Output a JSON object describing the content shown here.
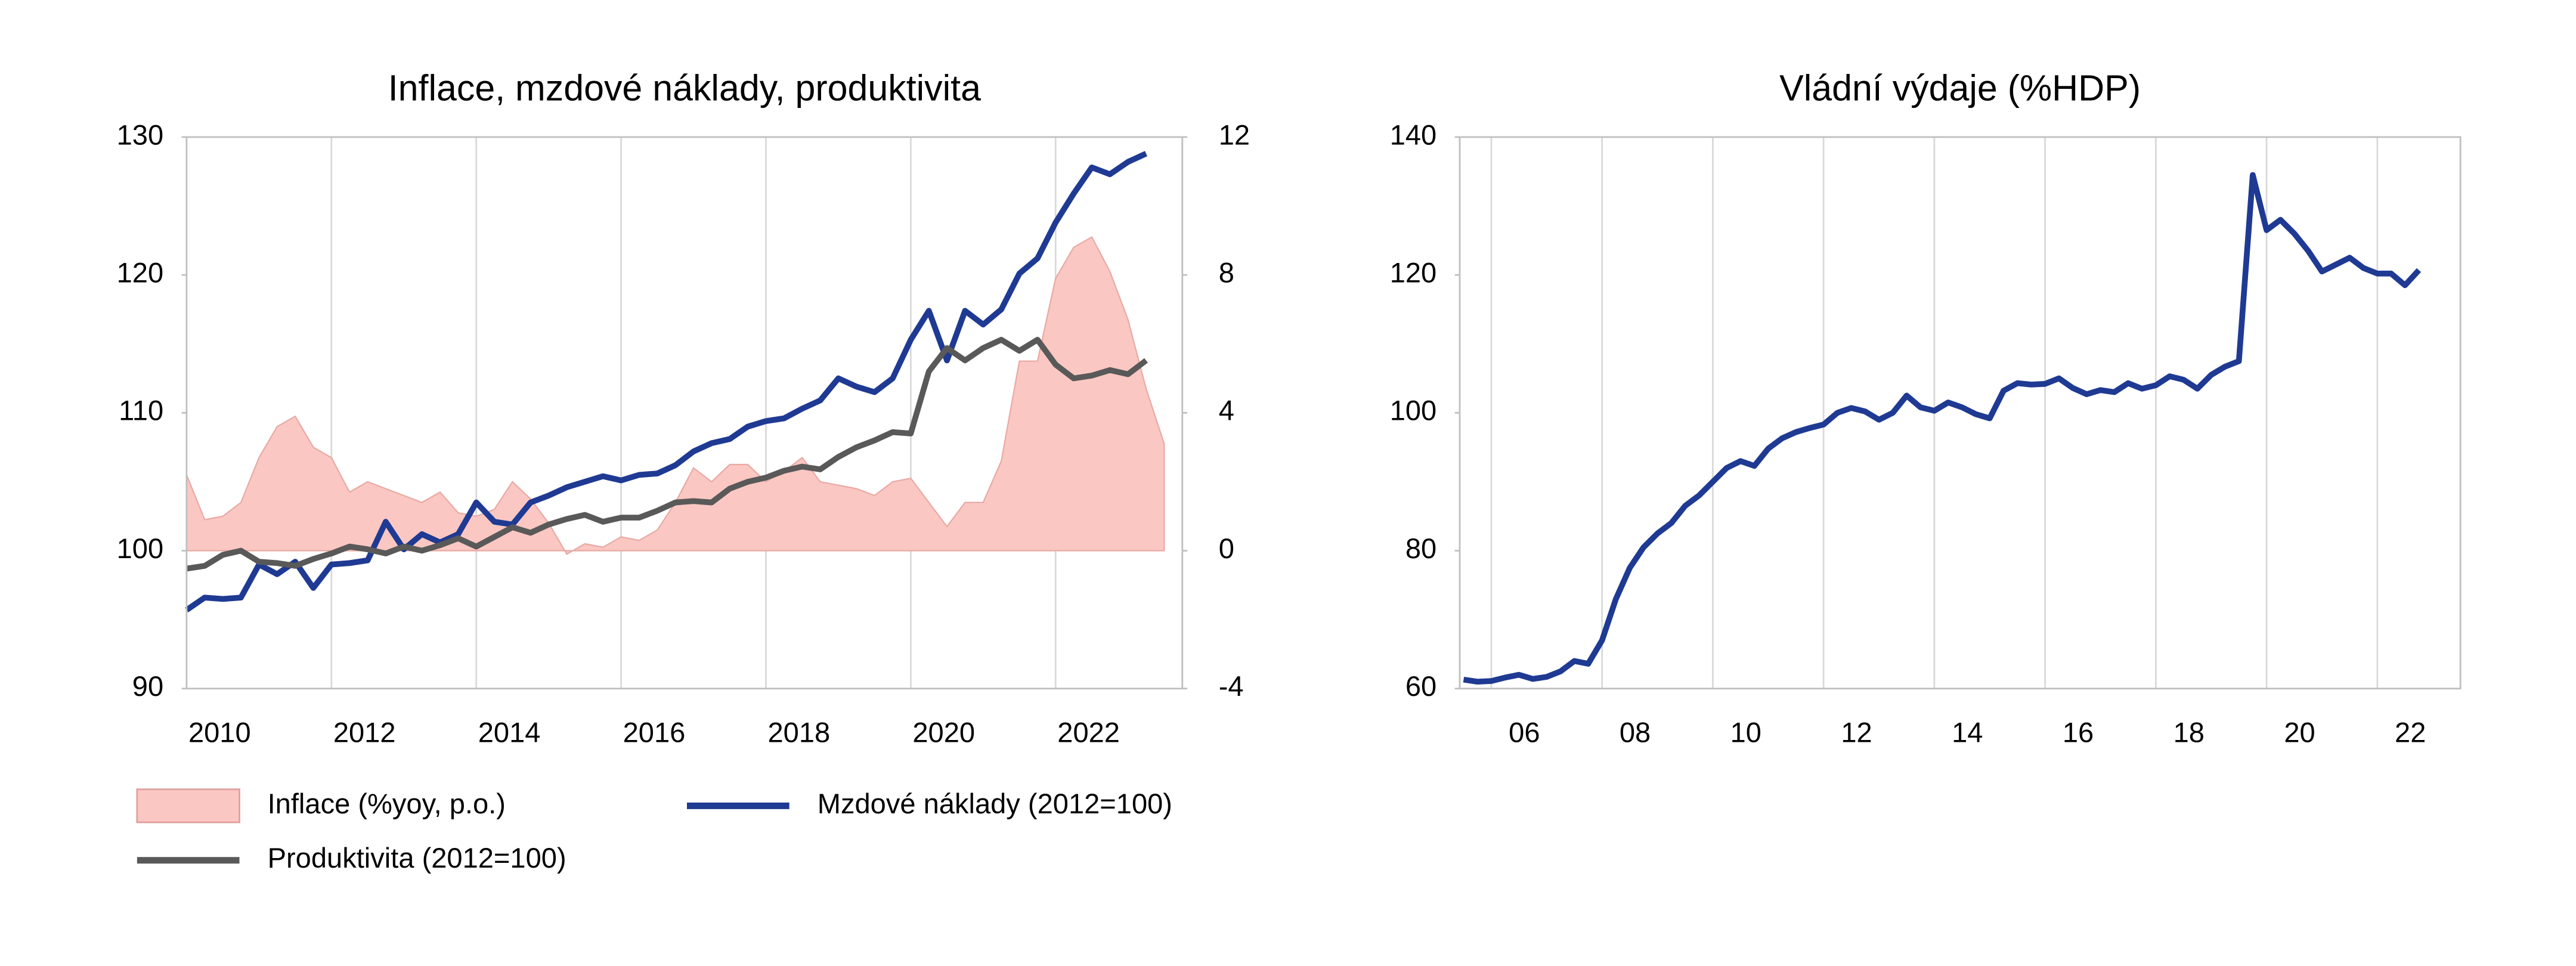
{
  "chart_data": [
    {
      "type": "line",
      "title": "Inflace, mzdové náklady, produktivita",
      "legend": "bottom",
      "grid": "x",
      "x": [
        2010,
        2010.25,
        2010.5,
        2010.75,
        2011,
        2011.25,
        2011.5,
        2011.75,
        2012,
        2012.25,
        2012.5,
        2012.75,
        2013,
        2013.25,
        2013.5,
        2013.75,
        2014,
        2014.25,
        2014.5,
        2014.75,
        2015,
        2015.25,
        2015.5,
        2015.75,
        2016,
        2016.25,
        2016.5,
        2016.75,
        2017,
        2017.25,
        2017.5,
        2017.75,
        2018,
        2018.25,
        2018.5,
        2018.75,
        2019,
        2019.25,
        2019.5,
        2019.75,
        2020,
        2020.25,
        2020.5,
        2020.75,
        2021,
        2021.25,
        2021.5,
        2021.75,
        2022,
        2022.25,
        2022.5,
        2022.75,
        2023,
        2023.25,
        2023.5
      ],
      "xlim": [
        2010,
        2023.75
      ],
      "xticks": [
        2010,
        2012,
        2014,
        2016,
        2018,
        2020,
        2022
      ],
      "ylim": [
        90,
        130
      ],
      "yticks": [
        90,
        100,
        110,
        120,
        130
      ],
      "y2lim": [
        -4,
        12
      ],
      "y2ticks": [
        -4,
        0,
        4,
        8,
        12
      ],
      "series": [
        {
          "name": "Inflace (%yoy, p.o.)",
          "type": "area",
          "axis": "y2",
          "color": "#fbc7c2",
          "values": [
            2.2,
            0.9,
            1.0,
            1.4,
            2.7,
            3.6,
            3.9,
            3.0,
            2.7,
            1.7,
            2.0,
            1.8,
            1.6,
            1.4,
            1.7,
            1.1,
            1.0,
            1.2,
            2.0,
            1.5,
            0.8,
            -0.1,
            0.2,
            0.1,
            0.4,
            0.3,
            0.6,
            1.4,
            2.4,
            2.0,
            2.5,
            2.5,
            2.0,
            2.3,
            2.7,
            2.0,
            1.9,
            1.8,
            1.6,
            2.0,
            2.1,
            1.4,
            0.7,
            1.4,
            1.4,
            2.6,
            5.5,
            5.5,
            7.9,
            8.8,
            9.1,
            8.1,
            6.7,
            4.7,
            3.1
          ]
        },
        {
          "name": "Mzdové náklady (2012=100)",
          "type": "line",
          "axis": "y",
          "color": "#1f3a93",
          "values": [
            95.7,
            96.6,
            96.5,
            96.6,
            99.0,
            98.3,
            99.2,
            97.3,
            99.0,
            99.1,
            99.3,
            102.1,
            100.1,
            101.2,
            100.6,
            101.2,
            103.5,
            102.1,
            101.9,
            103.5,
            104.0,
            104.6,
            105.0,
            105.4,
            105.1,
            105.5,
            105.6,
            106.2,
            107.2,
            107.8,
            108.1,
            109.0,
            109.4,
            109.6,
            110.3,
            110.9,
            112.5,
            111.9,
            111.5,
            112.5,
            115.3,
            117.4,
            113.8,
            117.4,
            116.4,
            117.5,
            120.1,
            121.2,
            123.8,
            125.9,
            127.8,
            127.3,
            128.2,
            128.8,
            null
          ]
        },
        {
          "name": "Produktivita (2012=100)",
          "type": "line",
          "axis": "y",
          "color": "#595959",
          "values": [
            98.7,
            98.9,
            99.7,
            100.0,
            99.2,
            99.1,
            98.9,
            99.4,
            99.8,
            100.3,
            100.1,
            99.8,
            100.3,
            100.0,
            100.4,
            100.9,
            100.3,
            101.0,
            101.7,
            101.3,
            101.9,
            102.3,
            102.6,
            102.1,
            102.4,
            102.4,
            102.9,
            103.5,
            103.6,
            103.5,
            104.5,
            105.0,
            105.3,
            105.8,
            106.1,
            105.9,
            106.8,
            107.5,
            108.0,
            108.6,
            108.5,
            113.0,
            114.7,
            113.8,
            114.7,
            115.3,
            114.5,
            115.3,
            113.5,
            112.5,
            112.7,
            113.1,
            112.8,
            113.8,
            null
          ]
        }
      ]
    },
    {
      "type": "line",
      "title": "Vládní výdaje (%HDP)",
      "grid": "x",
      "x": [
        2005.5,
        2005.75,
        2006,
        2006.25,
        2006.5,
        2006.75,
        2007,
        2007.25,
        2007.5,
        2007.75,
        2008,
        2008.25,
        2008.5,
        2008.75,
        2009,
        2009.25,
        2009.5,
        2009.75,
        2010,
        2010.25,
        2010.5,
        2010.75,
        2011,
        2011.25,
        2011.5,
        2011.75,
        2012,
        2012.25,
        2012.5,
        2012.75,
        2013,
        2013.25,
        2013.5,
        2013.75,
        2014,
        2014.25,
        2014.5,
        2014.75,
        2015,
        2015.25,
        2015.5,
        2015.75,
        2016,
        2016.25,
        2016.5,
        2016.75,
        2017,
        2017.25,
        2017.5,
        2017.75,
        2018,
        2018.25,
        2018.5,
        2018.75,
        2019,
        2019.25,
        2019.5,
        2019.75,
        2020,
        2020.25,
        2020.5,
        2020.75,
        2021,
        2021.25,
        2021.5,
        2021.75,
        2022,
        2022.25,
        2022.5,
        2022.75
      ],
      "xlim": [
        2005.43,
        2023.5
      ],
      "xticks": [
        {
          "value": 2006,
          "label": "06"
        },
        {
          "value": 2008,
          "label": "08"
        },
        {
          "value": 2010,
          "label": "10"
        },
        {
          "value": 2012,
          "label": "12"
        },
        {
          "value": 2014,
          "label": "14"
        },
        {
          "value": 2016,
          "label": "16"
        },
        {
          "value": 2018,
          "label": "18"
        },
        {
          "value": 2020,
          "label": "20"
        },
        {
          "value": 2022,
          "label": "22"
        }
      ],
      "ylim": [
        60,
        140
      ],
      "yticks": [
        60,
        80,
        100,
        120,
        140
      ],
      "series": [
        {
          "type": "line",
          "axis": "y",
          "color": "#1f3a93",
          "values": [
            61.3,
            61.0,
            61.1,
            61.6,
            62.0,
            61.4,
            61.7,
            62.5,
            64.0,
            63.6,
            67,
            73,
            77.5,
            80.5,
            82.5,
            84,
            86.5,
            88,
            90,
            92,
            93,
            92.3,
            94.8,
            96.3,
            97.2,
            97.8,
            98.3,
            100,
            100.7,
            100.2,
            99,
            100,
            102.5,
            100.8,
            100.3,
            101.5,
            100.8,
            99.8,
            99.2,
            103.2,
            104.3,
            104.1,
            104.2,
            105,
            103.6,
            102.7,
            103.3,
            103,
            104.3,
            103.5,
            104,
            105.3,
            104.8,
            103.5,
            105.5,
            106.7,
            107.5,
            134.5,
            126.5,
            128,
            126,
            123.5,
            120.5,
            121.5,
            122.5,
            121,
            120.2,
            120.2,
            118.5,
            120.7
          ]
        }
      ]
    }
  ]
}
